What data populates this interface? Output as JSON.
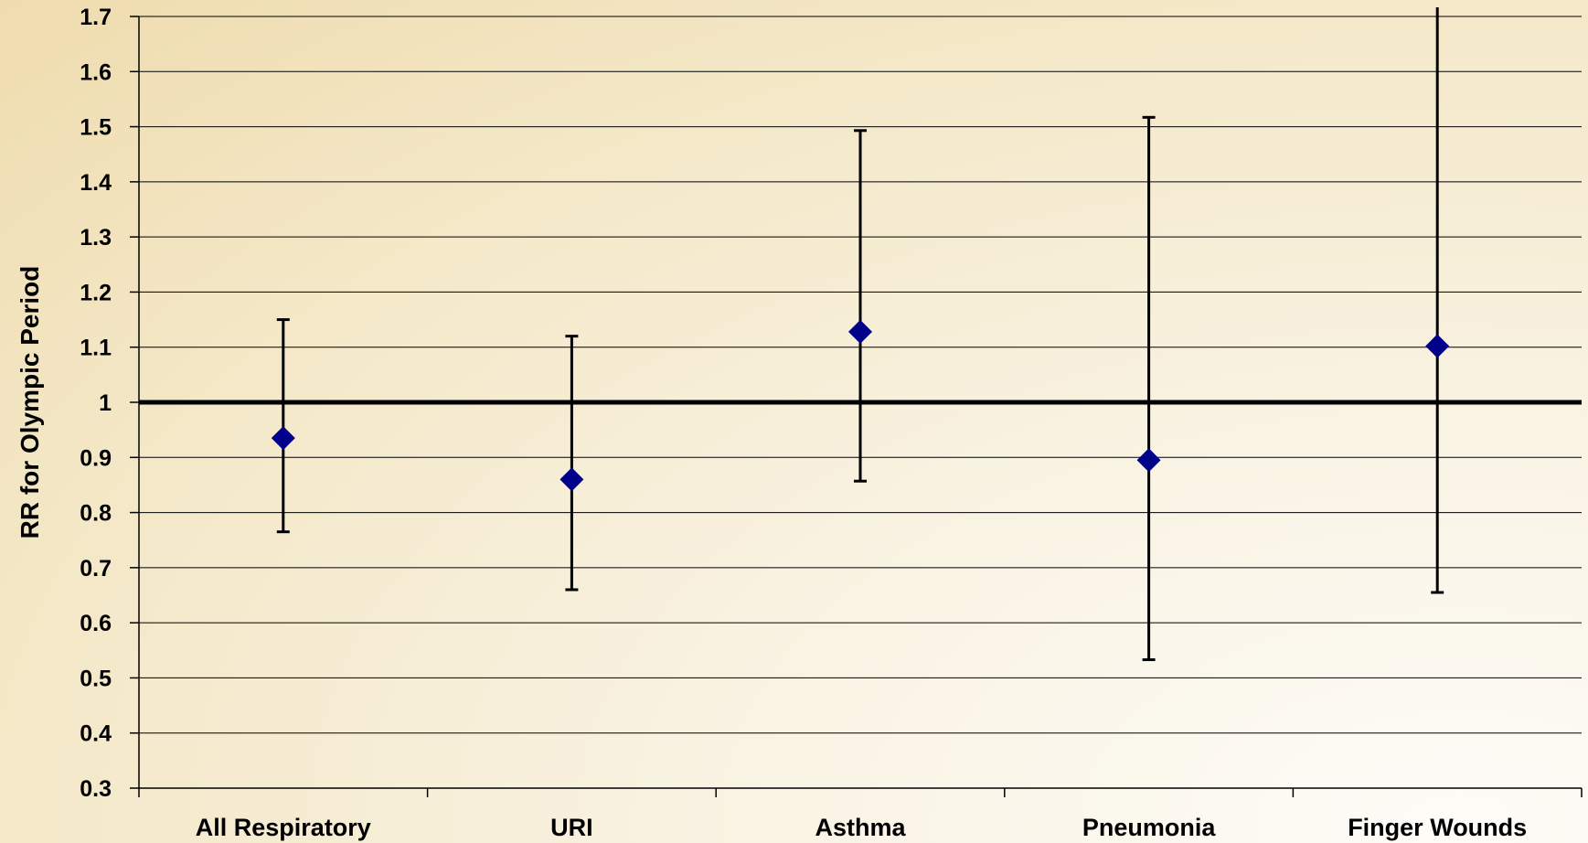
{
  "chart_data": {
    "type": "scatter",
    "title": "",
    "xlabel": "",
    "ylabel": "RR for Olympic Period",
    "categories": [
      "All Respiratory",
      "URI",
      "Asthma",
      "Pneumonia",
      "Finger Wounds"
    ],
    "series": [
      {
        "values": [
          0.935,
          0.86,
          1.128,
          0.895,
          1.102
        ],
        "lower": [
          0.765,
          0.66,
          0.857,
          0.533,
          0.655
        ],
        "upper": [
          1.15,
          1.12,
          1.493,
          1.517,
          1.72
        ]
      }
    ],
    "reference_line": 1,
    "ylim": [
      0.3,
      1.7
    ],
    "yticks": [
      "0.3",
      "0.4",
      "0.5",
      "0.6",
      "0.7",
      "0.8",
      "0.9",
      "1",
      "1.1",
      "1.2",
      "1.3",
      "1.4",
      "1.5",
      "1.6",
      "1.7"
    ],
    "grid": true,
    "legend": "none",
    "colors": {
      "marker": "#00008b",
      "error_bar": "#000000",
      "grid": "#000000",
      "reference_line": "#000000"
    }
  }
}
